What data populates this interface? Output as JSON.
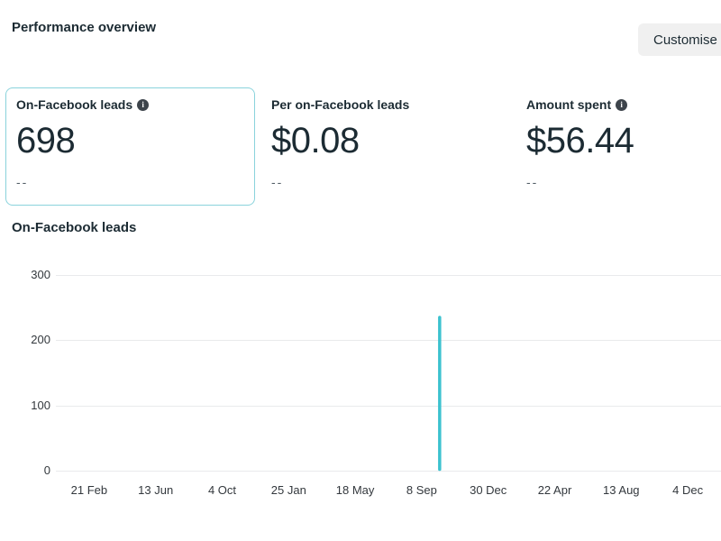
{
  "header": {
    "title": "Performance overview",
    "customise_button": "Customise me"
  },
  "metric_cards": [
    {
      "label": "On-Facebook leads",
      "has_info_icon": true,
      "value": "698",
      "secondary": "--",
      "selected": true
    },
    {
      "label": "Per on-Facebook leads",
      "has_info_icon": false,
      "value": "$0.08",
      "secondary": "--",
      "selected": false
    },
    {
      "label": "Amount spent",
      "has_info_icon": true,
      "value": "$56.44",
      "secondary": "--",
      "selected": false
    }
  ],
  "icons": {
    "info": "i-in-filled-circle"
  },
  "colors": {
    "accent_line": "#3cc2cf",
    "selected_card_border": "#8ad3dc",
    "gridline": "#e9eaec",
    "button_bg": "#f0f0f0",
    "text_primary": "#1c2b33"
  },
  "chart": {
    "title": "On-Facebook leads"
  },
  "chart_data": {
    "type": "line",
    "title": "On-Facebook leads",
    "x_tick_labels": [
      "21 Feb",
      "13 Jun",
      "4 Oct",
      "25 Jan",
      "18 May",
      "8 Sep",
      "30 Dec",
      "22 Apr",
      "13 Aug",
      "4 Dec"
    ],
    "y_ticks": [
      0,
      100,
      200,
      300
    ],
    "ylim": [
      0,
      300
    ],
    "grid": "horizontal",
    "legend": "none",
    "series": [
      {
        "name": "On-Facebook leads",
        "color": "#3cc2cf",
        "baseline_value": 0,
        "points": [
          {
            "x_fraction": 0.577,
            "value": 235
          }
        ],
        "note": "Single narrow spike between '8 Sep' and '30 Dec' peaking at ~235 leads; no visible line elsewhere"
      }
    ]
  }
}
